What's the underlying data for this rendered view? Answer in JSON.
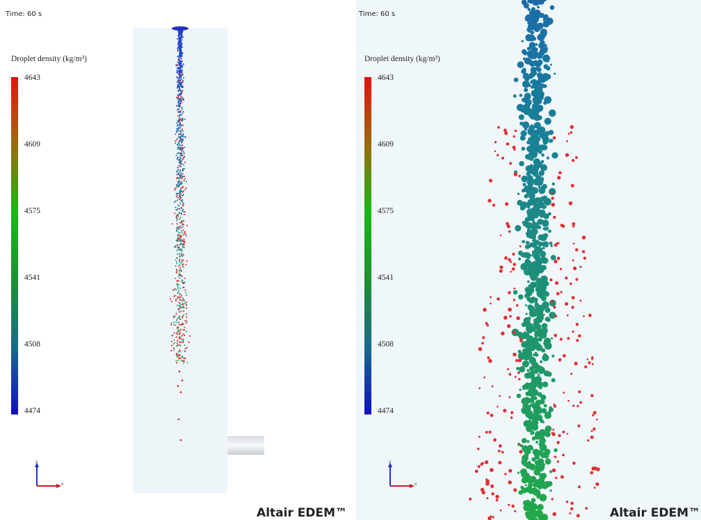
{
  "panels": [
    {
      "time": "Time: 60 s",
      "legend_title": "Droplet density (kg/m³)",
      "legend_ticks": [
        4643,
        4609,
        4575,
        4541,
        4508,
        4474
      ],
      "axes": {
        "z": "z",
        "x": "x"
      },
      "brand": "Altair EDEM™"
    },
    {
      "time": "Time: 60 s",
      "legend_title": "Droplet density (kg/m³)",
      "legend_ticks": [
        4643,
        4609,
        4575,
        4541,
        4508,
        4474
      ],
      "axes": {
        "z": "z",
        "x": "x"
      },
      "brand": "Altair EDEM™"
    }
  ]
}
